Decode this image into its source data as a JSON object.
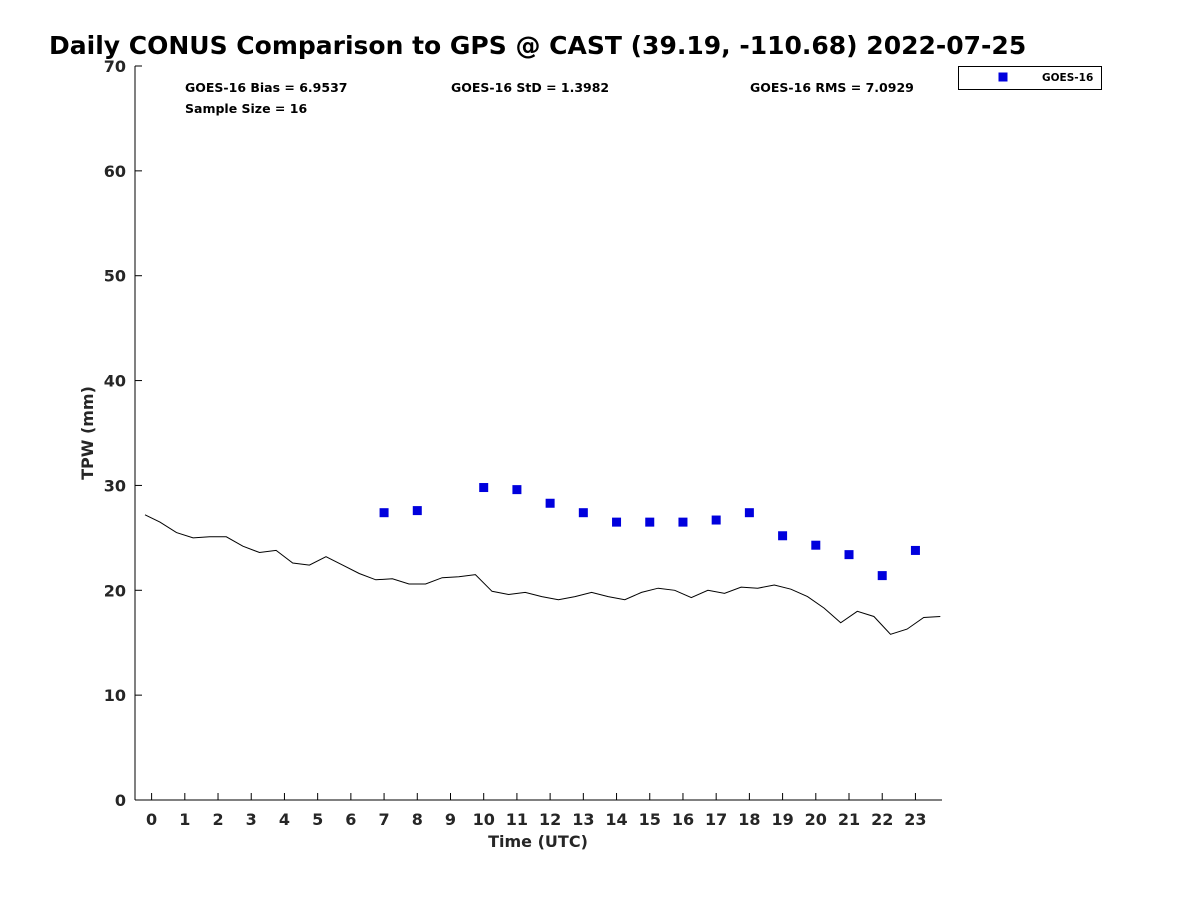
{
  "chart_data": {
    "type": "scatter",
    "title": "Daily CONUS Comparison to GPS @ CAST (39.19, -110.68) 2022-07-25",
    "xlabel": "Time (UTC)",
    "ylabel": "TPW (mm)",
    "xlim": [
      -0.5,
      23.8
    ],
    "ylim": [
      0,
      70
    ],
    "xticks": [
      "0",
      "1",
      "2",
      "3",
      "4",
      "5",
      "6",
      "7",
      "8",
      "9",
      "10",
      "11",
      "12",
      "13",
      "14",
      "15",
      "16",
      "17",
      "18",
      "19",
      "20",
      "21",
      "22",
      "23"
    ],
    "yticks": [
      "0",
      "10",
      "20",
      "30",
      "40",
      "50",
      "60",
      "70"
    ],
    "grid": false,
    "legend_position": "top-right, outside plot",
    "stats": {
      "bias": "GOES-16 Bias = 6.9537",
      "std": "GOES-16 StD = 1.3982",
      "rms": "GOES-16 RMS = 7.0929",
      "sample_size": "Sample Size = 16"
    },
    "series": [
      {
        "name": "GOES-16",
        "kind": "scatter",
        "marker": "square",
        "color": "#0000dd",
        "x": [
          7,
          8,
          10,
          11,
          12,
          13,
          14,
          15,
          16,
          17,
          18,
          19,
          20,
          21,
          22,
          23
        ],
        "y": [
          27.4,
          27.6,
          29.8,
          29.6,
          28.3,
          27.4,
          26.5,
          26.5,
          26.5,
          26.7,
          27.4,
          25.2,
          24.3,
          23.4,
          21.4,
          23.8
        ]
      },
      {
        "kind": "line",
        "color": "#000000",
        "x": [
          -0.2,
          0.25,
          0.75,
          1.25,
          1.75,
          2.25,
          2.75,
          3.25,
          3.75,
          4.25,
          4.75,
          5.25,
          5.75,
          6.25,
          6.75,
          7.25,
          7.75,
          8.25,
          8.75,
          9.25,
          9.75,
          10.25,
          10.75,
          11.25,
          11.75,
          12.25,
          12.75,
          13.25,
          13.75,
          14.25,
          14.75,
          15.25,
          15.75,
          16.25,
          16.75,
          17.25,
          17.75,
          18.25,
          18.75,
          19.25,
          19.75,
          20.25,
          20.75,
          21.25,
          21.75,
          22.25,
          22.75,
          23.25,
          23.75
        ],
        "y": [
          27.2,
          26.5,
          25.5,
          25.0,
          25.1,
          25.1,
          24.2,
          23.6,
          23.8,
          22.6,
          22.4,
          23.2,
          22.4,
          21.6,
          21.0,
          21.1,
          20.6,
          20.6,
          21.2,
          21.3,
          21.5,
          19.9,
          19.6,
          19.8,
          19.4,
          19.1,
          19.4,
          19.8,
          19.4,
          19.1,
          19.8,
          20.2,
          20.0,
          19.3,
          20.0,
          19.7,
          20.3,
          20.2,
          20.5,
          20.1,
          19.4,
          18.3,
          16.9,
          18.0,
          17.5,
          15.8,
          16.3,
          17.4,
          17.5
        ]
      }
    ]
  }
}
